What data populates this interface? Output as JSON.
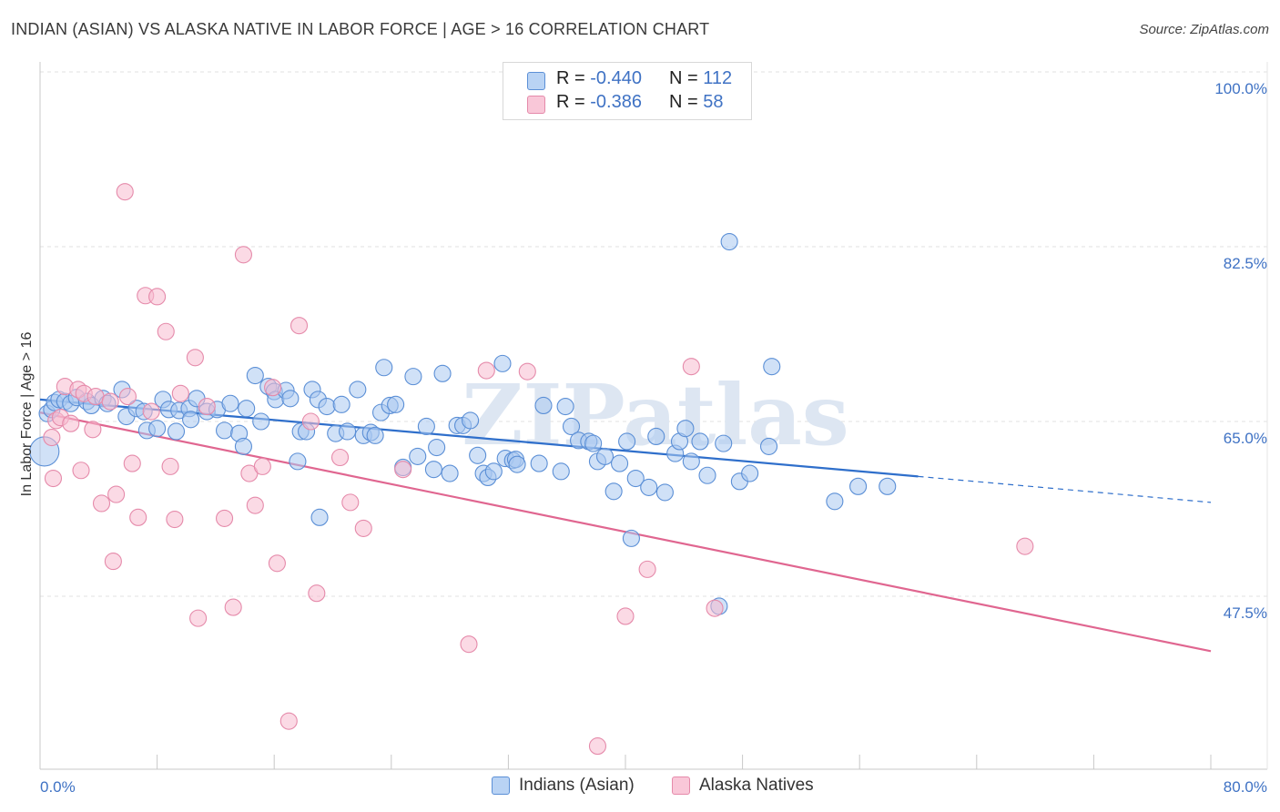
{
  "title": "INDIAN (ASIAN) VS ALASKA NATIVE IN LABOR FORCE | AGE > 16 CORRELATION CHART",
  "source": "Source: ZipAtlas.com",
  "watermark": "ZIPatlas",
  "legend_top": [
    {
      "r_label": "R =",
      "r_value": "-0.440",
      "n_label": "N =",
      "n_value": "112"
    },
    {
      "r_label": "R =",
      "r_value": "-0.386",
      "n_label": "N =",
      "n_value": "58"
    }
  ],
  "legend_bottom": [
    "Indians (Asian)",
    "Alaska Natives"
  ],
  "colors": {
    "blue_fill": "#a9c8f0",
    "blue_stroke": "#5b8fd6",
    "blue_line": "#2f6fcb",
    "pink_fill": "#f7bcd0",
    "pink_stroke": "#e58aaa",
    "pink_line": "#e06690",
    "grid": "#e0e0e0",
    "tick_text": "#3f72c4"
  },
  "chart_data": {
    "type": "scatter",
    "title": "INDIAN (ASIAN) VS ALASKA NATIVE IN LABOR FORCE | AGE > 16 CORRELATION CHART",
    "xlabel": "",
    "ylabel": "In Labor Force | Age > 16",
    "xlim": [
      0,
      80
    ],
    "ylim": [
      30,
      101
    ],
    "x_tick_labels": [
      "0.0%",
      "80.0%"
    ],
    "y_ticks": [
      47.5,
      65.0,
      82.5,
      100.0
    ],
    "y_tick_labels": [
      "47.5%",
      "65.0%",
      "82.5%",
      "100.0%"
    ],
    "series": [
      {
        "name": "Indians (Asian)",
        "color": "blue",
        "trend": {
          "x0": 0,
          "y0": 67.2,
          "x1": 60,
          "y1": 59.5,
          "dash_x1": 80,
          "dash_y1": 56.9
        },
        "points": [
          [
            0.3,
            62.0,
            16
          ],
          [
            0.5,
            65.8,
            9
          ],
          [
            0.8,
            66.2,
            9
          ],
          [
            1.0,
            66.9,
            9
          ],
          [
            1.3,
            67.2,
            9
          ],
          [
            1.7,
            67.0,
            9
          ],
          [
            2.1,
            66.8,
            9
          ],
          [
            2.5,
            67.4,
            9
          ],
          [
            3.2,
            67.0,
            9
          ],
          [
            3.5,
            66.6,
            9
          ],
          [
            4.3,
            67.3,
            9
          ],
          [
            4.6,
            66.8,
            9
          ],
          [
            5.6,
            68.2,
            9
          ],
          [
            5.9,
            65.5,
            9
          ],
          [
            6.6,
            66.3,
            9
          ],
          [
            7.1,
            66.0,
            9
          ],
          [
            7.3,
            64.1,
            9
          ],
          [
            8.0,
            64.3,
            9
          ],
          [
            8.4,
            67.2,
            9
          ],
          [
            8.8,
            66.2,
            9
          ],
          [
            9.3,
            64.0,
            9
          ],
          [
            9.5,
            66.1,
            9
          ],
          [
            10.2,
            66.3,
            9
          ],
          [
            10.3,
            65.2,
            9
          ],
          [
            10.7,
            67.3,
            9
          ],
          [
            11.4,
            66.0,
            9
          ],
          [
            12.1,
            66.2,
            9
          ],
          [
            12.6,
            64.1,
            9
          ],
          [
            13.0,
            66.8,
            9
          ],
          [
            13.6,
            63.8,
            9
          ],
          [
            13.9,
            62.5,
            9
          ],
          [
            14.1,
            66.3,
            9
          ],
          [
            14.7,
            69.6,
            9
          ],
          [
            15.1,
            65.0,
            9
          ],
          [
            15.6,
            68.5,
            9
          ],
          [
            16.0,
            68.0,
            9
          ],
          [
            16.1,
            67.2,
            9
          ],
          [
            16.8,
            68.1,
            9
          ],
          [
            17.1,
            67.3,
            9
          ],
          [
            17.6,
            61.0,
            9
          ],
          [
            17.8,
            64.0,
            9
          ],
          [
            18.2,
            64.0,
            9
          ],
          [
            18.6,
            68.2,
            9
          ],
          [
            19.0,
            67.2,
            9
          ],
          [
            19.1,
            55.4,
            9
          ],
          [
            19.6,
            66.5,
            9
          ],
          [
            20.2,
            63.8,
            9
          ],
          [
            20.6,
            66.7,
            9
          ],
          [
            21.0,
            64.0,
            9
          ],
          [
            21.7,
            68.2,
            9
          ],
          [
            22.1,
            63.6,
            9
          ],
          [
            22.6,
            63.9,
            9
          ],
          [
            22.9,
            63.6,
            9
          ],
          [
            23.3,
            65.9,
            9
          ],
          [
            23.5,
            70.4,
            9
          ],
          [
            23.9,
            66.6,
            9
          ],
          [
            24.3,
            66.7,
            9
          ],
          [
            24.8,
            60.4,
            9
          ],
          [
            25.5,
            69.5,
            9
          ],
          [
            25.8,
            61.5,
            9
          ],
          [
            26.4,
            64.5,
            9
          ],
          [
            26.9,
            60.2,
            9
          ],
          [
            27.1,
            62.4,
            9
          ],
          [
            27.5,
            69.8,
            9
          ],
          [
            28.0,
            59.8,
            9
          ],
          [
            28.5,
            64.6,
            9
          ],
          [
            28.9,
            64.6,
            9
          ],
          [
            29.4,
            65.1,
            9
          ],
          [
            29.9,
            61.6,
            9
          ],
          [
            30.3,
            59.8,
            9
          ],
          [
            30.6,
            59.4,
            9
          ],
          [
            31.0,
            60.0,
            9
          ],
          [
            31.6,
            70.8,
            9
          ],
          [
            31.8,
            61.3,
            9
          ],
          [
            32.3,
            61.1,
            9
          ],
          [
            32.5,
            61.2,
            9
          ],
          [
            32.6,
            60.7,
            9
          ],
          [
            34.1,
            60.8,
            9
          ],
          [
            34.4,
            66.6,
            9
          ],
          [
            35.6,
            60.0,
            9
          ],
          [
            35.9,
            66.5,
            9
          ],
          [
            36.3,
            64.5,
            9
          ],
          [
            36.8,
            63.1,
            9
          ],
          [
            37.5,
            63.0,
            9
          ],
          [
            37.8,
            62.8,
            9
          ],
          [
            38.1,
            61.0,
            9
          ],
          [
            38.6,
            61.5,
            9
          ],
          [
            39.2,
            58.0,
            9
          ],
          [
            39.6,
            60.8,
            9
          ],
          [
            40.1,
            63.0,
            9
          ],
          [
            40.4,
            53.3,
            9
          ],
          [
            40.7,
            59.3,
            9
          ],
          [
            41.6,
            58.4,
            9
          ],
          [
            42.1,
            63.5,
            9
          ],
          [
            42.7,
            57.9,
            9
          ],
          [
            43.4,
            61.8,
            9
          ],
          [
            43.7,
            63.0,
            9
          ],
          [
            44.1,
            64.3,
            9
          ],
          [
            44.5,
            61.0,
            9
          ],
          [
            45.1,
            63.0,
            9
          ],
          [
            45.6,
            59.6,
            9
          ],
          [
            46.7,
            62.8,
            9
          ],
          [
            47.1,
            83.0,
            9
          ],
          [
            47.8,
            59.0,
            9
          ],
          [
            48.5,
            59.8,
            9
          ],
          [
            49.8,
            62.5,
            9
          ],
          [
            50.0,
            70.5,
            9
          ],
          [
            54.3,
            57.0,
            9
          ],
          [
            55.9,
            58.5,
            9
          ],
          [
            57.9,
            58.5,
            9
          ],
          [
            46.4,
            46.5,
            9
          ]
        ]
      },
      {
        "name": "Alaska Natives",
        "color": "pink",
        "trend": {
          "x0": 0,
          "y0": 65.9,
          "x1": 80,
          "y1": 42.0
        },
        "points": [
          [
            0.8,
            63.4,
            9
          ],
          [
            0.9,
            59.3,
            9
          ],
          [
            1.1,
            65.1,
            9
          ],
          [
            1.4,
            65.4,
            9
          ],
          [
            1.7,
            68.5,
            9
          ],
          [
            2.1,
            64.8,
            9
          ],
          [
            2.6,
            68.2,
            9
          ],
          [
            2.8,
            60.1,
            9
          ],
          [
            3.0,
            67.8,
            9
          ],
          [
            3.6,
            64.2,
            9
          ],
          [
            3.8,
            67.5,
            9
          ],
          [
            4.2,
            56.8,
            9
          ],
          [
            4.8,
            67.0,
            9
          ],
          [
            5.0,
            51.0,
            9
          ],
          [
            5.2,
            57.7,
            9
          ],
          [
            5.8,
            88.0,
            9
          ],
          [
            6.0,
            67.5,
            9
          ],
          [
            6.3,
            60.8,
            9
          ],
          [
            6.7,
            55.4,
            9
          ],
          [
            7.2,
            77.6,
            9
          ],
          [
            7.6,
            66.0,
            9
          ],
          [
            8.0,
            77.5,
            9
          ],
          [
            8.6,
            74.0,
            9
          ],
          [
            8.9,
            60.5,
            9
          ],
          [
            9.2,
            55.2,
            9
          ],
          [
            9.6,
            67.8,
            9
          ],
          [
            10.6,
            71.4,
            9
          ],
          [
            10.8,
            45.3,
            9
          ],
          [
            11.4,
            66.5,
            9
          ],
          [
            12.6,
            55.3,
            9
          ],
          [
            13.2,
            46.4,
            9
          ],
          [
            13.9,
            81.7,
            9
          ],
          [
            14.3,
            59.8,
            9
          ],
          [
            14.7,
            56.6,
            9
          ],
          [
            15.2,
            60.5,
            9
          ],
          [
            15.9,
            68.4,
            9
          ],
          [
            16.2,
            50.8,
            9
          ],
          [
            17.0,
            35.0,
            9
          ],
          [
            17.7,
            74.6,
            9
          ],
          [
            18.9,
            47.8,
            9
          ],
          [
            18.5,
            65.0,
            9
          ],
          [
            20.5,
            61.4,
            9
          ],
          [
            21.2,
            56.9,
            9
          ],
          [
            22.1,
            54.3,
            9
          ],
          [
            24.8,
            60.2,
            9
          ],
          [
            29.3,
            42.7,
            9
          ],
          [
            30.5,
            70.1,
            9
          ],
          [
            33.3,
            70.0,
            9
          ],
          [
            38.1,
            32.5,
            9
          ],
          [
            40.0,
            45.5,
            9
          ],
          [
            41.5,
            50.2,
            9
          ],
          [
            44.5,
            70.5,
            9
          ],
          [
            46.1,
            46.3,
            9
          ],
          [
            67.3,
            52.5,
            9
          ]
        ]
      }
    ]
  }
}
